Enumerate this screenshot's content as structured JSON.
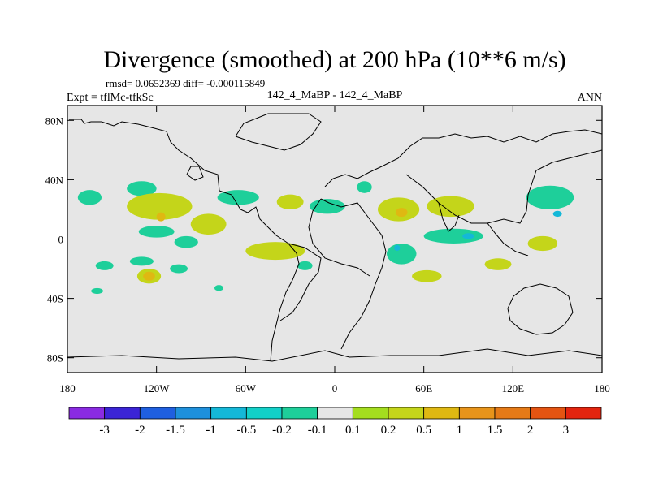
{
  "chart_data": {
    "type": "heatmap",
    "title": "Divergence (smoothed) at 200 hPa (10**6 m/s)",
    "stats": "rmsd= 0.0652369 diff= -0.000115849",
    "left_label": "Expt = tflMc-tfkSc",
    "center_label": "142_4_MaBP - 142_4_MaBP",
    "right_label": "ANN",
    "x_range": [
      -180,
      180
    ],
    "y_range": [
      -90,
      90
    ],
    "x_ticks": [
      {
        "value": -180,
        "label": "180"
      },
      {
        "value": -120,
        "label": "120W"
      },
      {
        "value": -60,
        "label": "60W"
      },
      {
        "value": 0,
        "label": "0"
      },
      {
        "value": 60,
        "label": "60E"
      },
      {
        "value": 120,
        "label": "120E"
      },
      {
        "value": 180,
        "label": "180"
      }
    ],
    "y_ticks": [
      {
        "value": 80,
        "label": "80N"
      },
      {
        "value": 40,
        "label": "40N"
      },
      {
        "value": 0,
        "label": "0"
      },
      {
        "value": -40,
        "label": "40S"
      },
      {
        "value": -80,
        "label": "80S"
      }
    ],
    "colorbar": {
      "colors": [
        "#8a2be2",
        "#3b24d6",
        "#1f5fe0",
        "#1e90dc",
        "#14b8d8",
        "#12d0c8",
        "#1ecf9a",
        "#e6e6e6",
        "#a4dd1f",
        "#c4d51a",
        "#dfb812",
        "#e8941a",
        "#e57a17",
        "#e45412",
        "#e3240f"
      ],
      "labels": [
        "-3",
        "-2",
        "-1.5",
        "-1",
        "-0.5",
        "-0.2",
        "-0.1",
        "0.1",
        "0.2",
        "0.5",
        "1",
        "1.5",
        "2",
        "3"
      ]
    },
    "fields": [
      {
        "lon": -165,
        "lat": 28,
        "rx": 8,
        "ry": 5,
        "level": -0.15
      },
      {
        "lon": -130,
        "lat": 34,
        "rx": 10,
        "ry": 5,
        "level": -0.15
      },
      {
        "lon": -118,
        "lat": 22,
        "rx": 22,
        "ry": 9,
        "level": 0.3
      },
      {
        "lon": -117,
        "lat": 15,
        "rx": 3,
        "ry": 3,
        "level": 0.7
      },
      {
        "lon": -120,
        "lat": 5,
        "rx": 12,
        "ry": 4,
        "level": -0.15
      },
      {
        "lon": -85,
        "lat": 10,
        "rx": 12,
        "ry": 7,
        "level": 0.3
      },
      {
        "lon": -100,
        "lat": -2,
        "rx": 8,
        "ry": 4,
        "level": -0.15
      },
      {
        "lon": -65,
        "lat": 28,
        "rx": 14,
        "ry": 5,
        "level": -0.15
      },
      {
        "lon": -30,
        "lat": 25,
        "rx": 9,
        "ry": 5,
        "level": 0.3
      },
      {
        "lon": -5,
        "lat": 22,
        "rx": 12,
        "ry": 5,
        "level": -0.15
      },
      {
        "lon": 20,
        "lat": 35,
        "rx": 5,
        "ry": 4,
        "level": -0.15
      },
      {
        "lon": 43,
        "lat": 20,
        "rx": 14,
        "ry": 8,
        "level": 0.3
      },
      {
        "lon": 45,
        "lat": 18,
        "rx": 4,
        "ry": 3,
        "level": 0.7
      },
      {
        "lon": 78,
        "lat": 22,
        "rx": 16,
        "ry": 7,
        "level": 0.3
      },
      {
        "lon": 80,
        "lat": 2,
        "rx": 20,
        "ry": 5,
        "level": -0.15
      },
      {
        "lon": 90,
        "lat": 2,
        "rx": 4,
        "ry": 2,
        "level": -0.6
      },
      {
        "lon": 145,
        "lat": 28,
        "rx": 16,
        "ry": 8,
        "level": -0.15
      },
      {
        "lon": 150,
        "lat": 17,
        "rx": 3,
        "ry": 2,
        "level": -0.6
      },
      {
        "lon": 140,
        "lat": -3,
        "rx": 10,
        "ry": 5,
        "level": 0.3
      },
      {
        "lon": -40,
        "lat": -8,
        "rx": 20,
        "ry": 6,
        "level": 0.3
      },
      {
        "lon": -20,
        "lat": -18,
        "rx": 5,
        "ry": 3,
        "level": -0.15
      },
      {
        "lon": 45,
        "lat": -10,
        "rx": 10,
        "ry": 7,
        "level": -0.15
      },
      {
        "lon": 42,
        "lat": -6,
        "rx": 2,
        "ry": 2,
        "level": -0.6
      },
      {
        "lon": 62,
        "lat": -25,
        "rx": 10,
        "ry": 4,
        "level": 0.3
      },
      {
        "lon": 110,
        "lat": -17,
        "rx": 9,
        "ry": 4,
        "level": 0.3
      },
      {
        "lon": -155,
        "lat": -18,
        "rx": 6,
        "ry": 3,
        "level": -0.15
      },
      {
        "lon": -130,
        "lat": -15,
        "rx": 8,
        "ry": 3,
        "level": -0.15
      },
      {
        "lon": -125,
        "lat": -25,
        "rx": 8,
        "ry": 5,
        "level": 0.4
      },
      {
        "lon": -125,
        "lat": -25,
        "rx": 4,
        "ry": 3,
        "level": 0.7
      },
      {
        "lon": -105,
        "lat": -20,
        "rx": 6,
        "ry": 3,
        "level": -0.15
      },
      {
        "lon": -160,
        "lat": -35,
        "rx": 4,
        "ry": 2,
        "level": -0.15
      },
      {
        "lon": -78,
        "lat": -33,
        "rx": 3,
        "ry": 2,
        "level": -0.15
      }
    ]
  }
}
